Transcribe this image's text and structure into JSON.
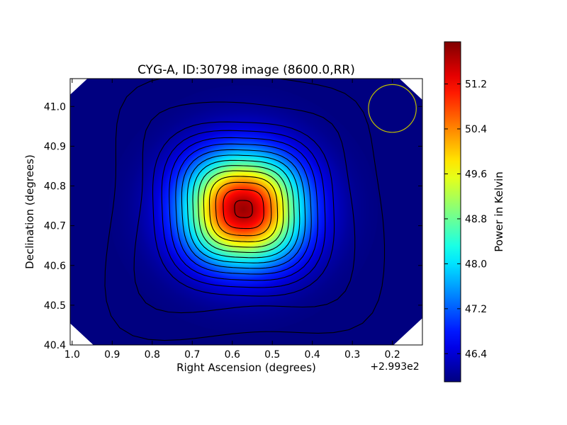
{
  "chart_data": {
    "type": "heatmap",
    "title": "CYG-A, ID:30798 image (8600.0,RR)",
    "xlabel": "Right Ascension (degrees)",
    "ylabel": "Declination (degrees)",
    "x_offset_label": "+2.993e2",
    "x_offset": 299.3,
    "xlim": [
      1.005,
      0.125
    ],
    "ylim": [
      40.4,
      41.07
    ],
    "x_ticks": [
      1.0,
      0.9,
      0.8,
      0.7,
      0.6,
      0.5,
      0.4,
      0.3,
      0.2
    ],
    "x_tick_labels": [
      "1.0",
      "0.9",
      "0.8",
      "0.7",
      "0.6",
      "0.5",
      "0.4",
      "0.3",
      "0.2"
    ],
    "y_ticks": [
      40.4,
      40.5,
      40.6,
      40.7,
      40.8,
      40.9,
      41.0
    ],
    "y_tick_labels": [
      "40.4",
      "40.5",
      "40.6",
      "40.7",
      "40.8",
      "40.9",
      "41.0"
    ],
    "source": {
      "ra": 0.572,
      "dec": 40.742,
      "peak_kelvin": 51.8
    },
    "background_kelvin": 45.9,
    "contour_levels_kelvin": [
      46.0,
      46.4,
      46.9,
      47.3,
      47.7,
      48.1,
      48.5,
      48.9,
      49.3,
      49.7,
      50.1,
      50.5,
      50.9,
      51.3,
      51.7
    ],
    "beam": {
      "ra": 0.2,
      "dec": 40.995,
      "radius_deg": 0.06,
      "color": "#bfbf00"
    },
    "colorbar": {
      "label": "Power in Kelvin",
      "vmin": 45.9,
      "vmax": 51.95,
      "ticks": [
        46.4,
        47.2,
        48.0,
        48.8,
        49.6,
        50.4,
        51.2
      ],
      "tick_labels": [
        "46.4",
        "47.2",
        "48.0",
        "48.8",
        "49.6",
        "50.4",
        "51.2"
      ],
      "colormap": "jet"
    }
  }
}
